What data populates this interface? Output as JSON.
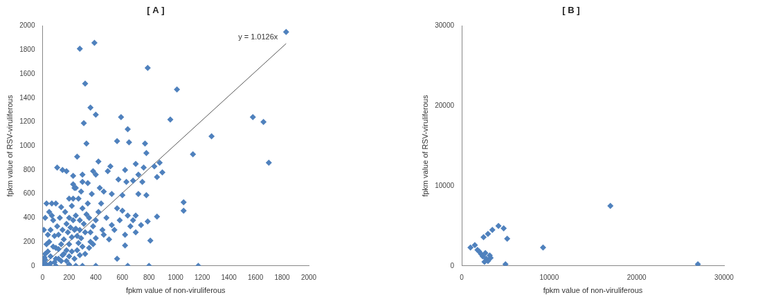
{
  "chart_data": [
    {
      "type": "scatter",
      "title": "[ A ]",
      "x_label": "fpkm value of non-viruliferous",
      "y_label": "fpkm value of RSV-viruliferous",
      "color": "#4f81bd",
      "marker": "diamond",
      "grid": false,
      "xlim": [
        0,
        2000
      ],
      "ylim": [
        0,
        2000
      ],
      "xticks": [
        0,
        200,
        400,
        600,
        800,
        1000,
        1200,
        1400,
        1600,
        1800,
        2000
      ],
      "yticks": [
        0,
        200,
        400,
        600,
        800,
        1000,
        1200,
        1400,
        1600,
        1800,
        2000
      ],
      "x": [
        280,
        390,
        1830,
        790,
        320,
        1010,
        960,
        590,
        640,
        1580,
        1660,
        1700,
        1270,
        1130,
        1060,
        1060,
        360,
        400,
        310,
        330,
        780,
        760,
        700,
        560,
        650,
        770,
        510,
        420,
        680,
        630,
        490,
        380,
        750,
        570,
        460,
        260,
        110,
        150,
        180,
        100,
        140,
        230,
        300,
        340,
        370,
        430,
        520,
        600,
        720,
        780,
        790,
        810,
        800,
        640,
        1170,
        400,
        360,
        560,
        620,
        700,
        680,
        450,
        480,
        520,
        600,
        640,
        560,
        420,
        330,
        280,
        250,
        220,
        200,
        180,
        150,
        120,
        90,
        60,
        30,
        10,
        20,
        40,
        50,
        60,
        70,
        80,
        90,
        100,
        110,
        120,
        130,
        140,
        150,
        160,
        170,
        180,
        190,
        200,
        210,
        220,
        230,
        240,
        250,
        260,
        270,
        280,
        290,
        300,
        310,
        320,
        340,
        350,
        360,
        380,
        40,
        30,
        20,
        60,
        80,
        100,
        120,
        140,
        160,
        180,
        200,
        220,
        240,
        260,
        280,
        300,
        320,
        350,
        380,
        400,
        10,
        20,
        30,
        50,
        70,
        200,
        240,
        270,
        290,
        300,
        250,
        200,
        100,
        50,
        0,
        5,
        15,
        400,
        440,
        460,
        500,
        540,
        580,
        620,
        660,
        700,
        740,
        860,
        900,
        860,
        880,
        840,
        720,
        620,
        400,
        300,
        230,
        250,
        230
      ],
      "values": [
        1810,
        1860,
        1950,
        1650,
        1520,
        1470,
        1220,
        1240,
        1140,
        1240,
        1200,
        860,
        1080,
        930,
        530,
        460,
        1320,
        1260,
        1190,
        1020,
        940,
        820,
        850,
        1040,
        1030,
        1020,
        830,
        870,
        710,
        700,
        790,
        790,
        700,
        720,
        620,
        910,
        820,
        800,
        790,
        520,
        490,
        560,
        700,
        690,
        600,
        650,
        600,
        590,
        600,
        590,
        370,
        210,
        0,
        0,
        0,
        0,
        280,
        60,
        170,
        280,
        380,
        300,
        400,
        340,
        460,
        420,
        480,
        450,
        430,
        380,
        310,
        240,
        180,
        130,
        90,
        60,
        30,
        20,
        10,
        5,
        50,
        120,
        200,
        300,
        420,
        380,
        250,
        150,
        330,
        260,
        400,
        180,
        300,
        220,
        450,
        350,
        280,
        400,
        320,
        500,
        380,
        300,
        420,
        250,
        190,
        300,
        230,
        480,
        350,
        280,
        520,
        400,
        200,
        330,
        260,
        180,
        100,
        80,
        160,
        60,
        140,
        40,
        100,
        40,
        80,
        120,
        60,
        130,
        90,
        160,
        100,
        150,
        180,
        230,
        300,
        400,
        520,
        450,
        520,
        560,
        650,
        560,
        620,
        0,
        0,
        10,
        0,
        0,
        0,
        30,
        70,
        380,
        520,
        260,
        220,
        300,
        380,
        260,
        330,
        420,
        340,
        410,
        780,
        740,
        860,
        830,
        760,
        800,
        760,
        760,
        750,
        650,
        680
      ],
      "trendline": {
        "label": "y = 1.0126x",
        "x": [
          0,
          1830
        ],
        "values": [
          0,
          1853
        ]
      }
    },
    {
      "type": "scatter",
      "title": "[ B ]",
      "x_label": "fpkm value of non-viruliferous",
      "y_label": "fpkm value of RSV-viruliferous",
      "color": "#4f81bd",
      "marker": "diamond",
      "grid": false,
      "xlim": [
        0,
        30000
      ],
      "ylim": [
        0,
        30000
      ],
      "xticks": [
        0,
        10000,
        20000,
        30000
      ],
      "yticks": [
        0,
        10000,
        20000,
        30000
      ],
      "x": [
        1000,
        1500,
        2000,
        2200,
        2400,
        2700,
        2800,
        3000,
        3200,
        2500,
        3500,
        4200,
        4800,
        5200,
        5000,
        9300,
        17000,
        27000,
        1800,
        2600,
        3000,
        3300
      ],
      "values": [
        2300,
        2600,
        1800,
        1500,
        1200,
        1600,
        900,
        600,
        1300,
        3600,
        4500,
        5000,
        4700,
        3400,
        200,
        2300,
        7500,
        200,
        2000,
        500,
        4000,
        1000
      ]
    }
  ]
}
